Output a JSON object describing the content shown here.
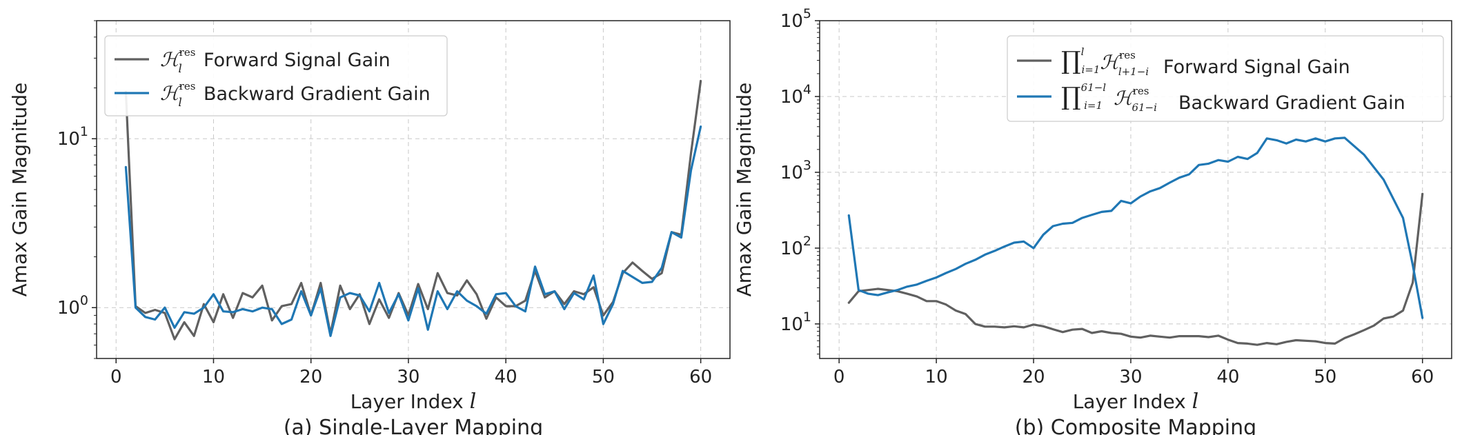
{
  "colors": {
    "forward": "#606060",
    "backward": "#1f77b4"
  },
  "chart_data": [
    {
      "type": "line",
      "caption": "(a) Single-Layer Mapping",
      "xlabel": "Layer Index",
      "xlabel_symbol": "l",
      "ylabel": "Amax Gain Magnitude",
      "yscale": "log",
      "xlim": [
        -2,
        63
      ],
      "ylim": [
        0.5,
        50
      ],
      "xticks": [
        0,
        10,
        20,
        30,
        40,
        50,
        60
      ],
      "yticks": [
        1,
        10
      ],
      "ytick_labels": [
        {
          "base": "10",
          "exp": "0"
        },
        {
          "base": "10",
          "exp": "1"
        }
      ],
      "grid": true,
      "legend_position": "upper-left",
      "series": [
        {
          "key": "forward",
          "name": "Forward Signal Gain",
          "legend_math": "H_l^res",
          "x": [
            1,
            2,
            3,
            4,
            5,
            6,
            7,
            8,
            9,
            10,
            11,
            12,
            13,
            14,
            15,
            16,
            17,
            18,
            19,
            20,
            21,
            22,
            23,
            24,
            25,
            26,
            27,
            28,
            29,
            30,
            31,
            32,
            33,
            34,
            35,
            36,
            37,
            38,
            39,
            40,
            41,
            42,
            43,
            44,
            45,
            46,
            47,
            48,
            49,
            50,
            51,
            52,
            53,
            54,
            55,
            56,
            57,
            58,
            59,
            60
          ],
          "y": [
            19,
            1.02,
            0.93,
            0.97,
            0.93,
            0.65,
            0.82,
            0.68,
            1.05,
            0.82,
            1.2,
            0.87,
            1.22,
            1.15,
            1.35,
            0.84,
            1.02,
            1.05,
            1.4,
            0.9,
            1.4,
            0.7,
            1.35,
            0.98,
            1.2,
            0.8,
            1.12,
            0.87,
            1.22,
            0.9,
            1.38,
            0.98,
            1.6,
            1.22,
            1.18,
            1.45,
            1.2,
            0.86,
            1.15,
            1.02,
            1.02,
            1.1,
            1.65,
            1.15,
            1.25,
            1.05,
            1.25,
            1.2,
            1.32,
            0.9,
            1.08,
            1.6,
            1.85,
            1.65,
            1.48,
            1.6,
            2.8,
            2.7,
            8.2,
            22
          ]
        },
        {
          "key": "backward",
          "name": "Backward Gradient Gain",
          "legend_math": "H_l^res",
          "x": [
            1,
            2,
            3,
            4,
            5,
            6,
            7,
            8,
            9,
            10,
            11,
            12,
            13,
            14,
            15,
            16,
            17,
            18,
            19,
            20,
            21,
            22,
            23,
            24,
            25,
            26,
            27,
            28,
            29,
            30,
            31,
            32,
            33,
            34,
            35,
            36,
            37,
            38,
            39,
            40,
            41,
            42,
            43,
            44,
            45,
            46,
            47,
            48,
            49,
            50,
            51,
            52,
            53,
            54,
            55,
            56,
            57,
            58,
            59,
            60
          ],
          "y": [
            6.8,
            1.0,
            0.88,
            0.85,
            1.0,
            0.76,
            0.94,
            0.92,
            1.0,
            1.2,
            0.95,
            0.94,
            0.98,
            0.95,
            1.0,
            0.98,
            0.8,
            0.85,
            1.25,
            0.9,
            1.3,
            0.68,
            1.15,
            1.22,
            1.18,
            0.95,
            1.4,
            0.93,
            1.2,
            0.84,
            1.3,
            0.74,
            1.25,
            0.98,
            1.25,
            1.1,
            1.02,
            0.92,
            1.2,
            1.22,
            1.02,
            0.95,
            1.75,
            1.2,
            1.25,
            0.98,
            1.22,
            1.12,
            1.55,
            0.8,
            1.05,
            1.65,
            1.52,
            1.4,
            1.42,
            1.72,
            2.8,
            2.6,
            6.5,
            11.8
          ]
        }
      ]
    },
    {
      "type": "line",
      "caption": "(b) Composite Mapping",
      "xlabel": "Layer Index",
      "xlabel_symbol": "l",
      "ylabel": "Amax Gain Magnitude",
      "yscale": "log",
      "xlim": [
        -2,
        63
      ],
      "ylim": [
        3.5,
        100000
      ],
      "xticks": [
        0,
        10,
        20,
        30,
        40,
        50,
        60
      ],
      "yticks": [
        10,
        100,
        1000,
        10000,
        100000
      ],
      "ytick_labels": [
        {
          "base": "10",
          "exp": "1"
        },
        {
          "base": "10",
          "exp": "2"
        },
        {
          "base": "10",
          "exp": "3"
        },
        {
          "base": "10",
          "exp": "4"
        },
        {
          "base": "10",
          "exp": "5"
        }
      ],
      "grid": true,
      "legend_position": "upper-right",
      "series": [
        {
          "key": "forward",
          "name": "Forward Signal Gain",
          "legend_math": "prod_{i=1}^{l} H_{l+1-i}^res",
          "x": [
            1,
            2,
            3,
            4,
            5,
            6,
            7,
            8,
            9,
            10,
            11,
            12,
            13,
            14,
            15,
            16,
            17,
            18,
            19,
            20,
            21,
            22,
            23,
            24,
            25,
            26,
            27,
            28,
            29,
            30,
            31,
            32,
            33,
            34,
            35,
            36,
            37,
            38,
            39,
            40,
            41,
            42,
            43,
            44,
            45,
            46,
            47,
            48,
            49,
            50,
            51,
            52,
            53,
            54,
            55,
            56,
            57,
            58,
            59,
            60
          ],
          "y": [
            19,
            27,
            28,
            29,
            28,
            27,
            25,
            23,
            20,
            20,
            18,
            15,
            13.5,
            10,
            9.2,
            9.2,
            9,
            9.3,
            9,
            9.8,
            9.3,
            8.5,
            7.8,
            8.4,
            8.6,
            7.6,
            8,
            7.6,
            7.4,
            6.8,
            6.6,
            7,
            6.8,
            6.6,
            6.9,
            6.9,
            6.9,
            6.7,
            7,
            6.2,
            5.6,
            5.5,
            5.3,
            5.6,
            5.4,
            5.8,
            6.1,
            6,
            5.9,
            5.6,
            5.5,
            6.5,
            7.3,
            8.3,
            9.5,
            11.8,
            12.5,
            15,
            35,
            520
          ]
        },
        {
          "key": "backward",
          "name": "Backward Gradient Gain",
          "legend_math": "prod_{i=1}^{61-l} H_{61-i}^res",
          "x": [
            1,
            2,
            3,
            4,
            5,
            6,
            7,
            8,
            9,
            10,
            11,
            12,
            13,
            14,
            15,
            16,
            17,
            18,
            19,
            20,
            21,
            22,
            23,
            24,
            25,
            26,
            27,
            28,
            29,
            30,
            31,
            32,
            33,
            34,
            35,
            36,
            37,
            38,
            39,
            40,
            41,
            42,
            43,
            44,
            45,
            46,
            47,
            48,
            49,
            50,
            51,
            52,
            54,
            56,
            58,
            59,
            60
          ],
          "y": [
            270,
            28,
            25,
            24,
            26,
            28,
            31,
            33,
            37,
            41,
            47,
            53,
            62,
            70,
            82,
            92,
            105,
            118,
            122,
            100,
            150,
            195,
            210,
            215,
            250,
            275,
            300,
            310,
            420,
            390,
            480,
            560,
            620,
            730,
            850,
            940,
            1250,
            1300,
            1450,
            1380,
            1600,
            1500,
            1800,
            2800,
            2650,
            2400,
            2700,
            2550,
            2800,
            2550,
            2800,
            2850,
            1700,
            800,
            250,
            60,
            12
          ]
        }
      ]
    }
  ]
}
